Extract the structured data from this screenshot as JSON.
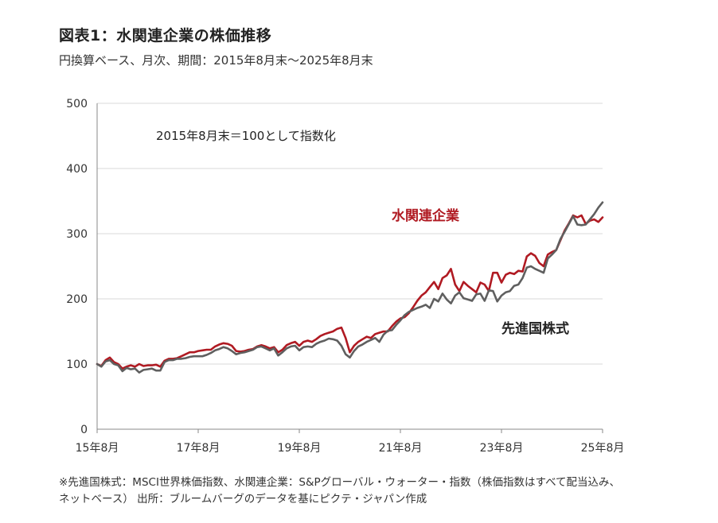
{
  "title": "図表1：水関連企業の株価推移",
  "subtitle": "円換算ベース、月次、期間：2015年8月末～2025年8月末",
  "footnote": {
    "line1": "※先進国株式：MSCI世界株価指数、水関連企業：S&Pグローバル・ウォーター・指数（株価指数はすべて配当込み、",
    "line2": "ネットベース） 出所：ブルームバーグのデータを基にピクテ・ジャパン作成"
  },
  "chart_data": {
    "type": "line",
    "annotation": "2015年8月末＝100として指数化",
    "ylim": [
      0,
      500
    ],
    "yticks": [
      0,
      100,
      200,
      300,
      400,
      500
    ],
    "xticks": [
      "15年8月",
      "17年8月",
      "19年8月",
      "21年8月",
      "23年8月",
      "25年8月"
    ],
    "xticks_month_index": [
      0,
      24,
      48,
      72,
      96,
      120
    ],
    "grid": true,
    "colors": {
      "water": "#b01a22",
      "dev": "#5f5f5f"
    },
    "series": [
      {
        "name": "水関連企業",
        "values": [
          100,
          97,
          106,
          110,
          103,
          100,
          93,
          96,
          98,
          96,
          100,
          97,
          98,
          98,
          99,
          96,
          105,
          108,
          108,
          109,
          112,
          115,
          118,
          118,
          120,
          121,
          122,
          122,
          127,
          130,
          132,
          131,
          128,
          120,
          119,
          120,
          122,
          123,
          127,
          129,
          127,
          124,
          126,
          118,
          122,
          129,
          132,
          134,
          128,
          134,
          136,
          134,
          138,
          143,
          146,
          148,
          150,
          154,
          156,
          140,
          118,
          128,
          134,
          138,
          142,
          140,
          146,
          148,
          150,
          150,
          158,
          165,
          170,
          172,
          178,
          187,
          197,
          205,
          210,
          218,
          226,
          215,
          232,
          236,
          246,
          222,
          212,
          226,
          220,
          215,
          210,
          225,
          222,
          212,
          240,
          240,
          225,
          237,
          240,
          238,
          243,
          242,
          265,
          270,
          266,
          255,
          250,
          268,
          272,
          275,
          290,
          305,
          316,
          328,
          325,
          328,
          315,
          320,
          322,
          318,
          325
        ]
      },
      {
        "name": "先進国株式",
        "values": [
          100,
          96,
          104,
          106,
          100,
          98,
          89,
          94,
          92,
          93,
          87,
          91,
          92,
          93,
          90,
          90,
          103,
          106,
          106,
          108,
          108,
          109,
          111,
          112,
          112,
          112,
          114,
          117,
          121,
          123,
          126,
          124,
          120,
          115,
          117,
          118,
          120,
          122,
          126,
          127,
          124,
          121,
          124,
          113,
          118,
          124,
          127,
          128,
          121,
          126,
          127,
          126,
          131,
          134,
          136,
          139,
          138,
          136,
          128,
          115,
          110,
          120,
          127,
          130,
          134,
          137,
          140,
          134,
          145,
          151,
          152,
          160,
          167,
          175,
          180,
          183,
          186,
          188,
          191,
          186,
          200,
          196,
          208,
          199,
          193,
          205,
          210,
          201,
          199,
          197,
          207,
          208,
          197,
          213,
          212,
          196,
          205,
          210,
          212,
          220,
          222,
          232,
          248,
          250,
          246,
          243,
          240,
          262,
          268,
          275,
          292,
          303,
          315,
          327,
          314,
          313,
          314,
          322,
          330,
          340,
          348
        ]
      }
    ]
  }
}
